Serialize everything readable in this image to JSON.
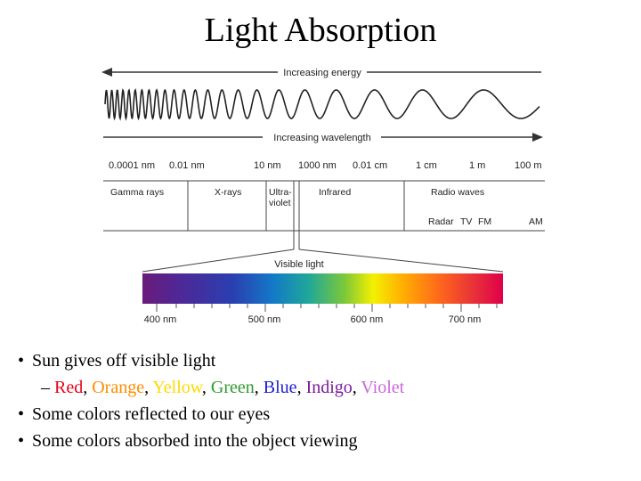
{
  "title": "Light Absorption",
  "diagram": {
    "energy_label": "Increasing energy",
    "wavelength_label": "Increasing wavelength",
    "scale_labels": [
      "0.0001 nm",
      "0.01 nm",
      "10 nm",
      "1000 nm",
      "0.01 cm",
      "1 cm",
      "1 m",
      "100 m"
    ],
    "regions": {
      "gamma": "Gamma rays",
      "xrays": "X-rays",
      "uv_line1": "Ultra-",
      "uv_line2": "violet",
      "infrared": "Infrared",
      "radio": "Radio waves",
      "radar": "Radar",
      "tv": "TV",
      "fm": "FM",
      "am": "AM"
    },
    "visible_label": "Visible light",
    "visible_ticks": [
      "400 nm",
      "500 nm",
      "600 nm",
      "700 nm"
    ]
  },
  "bullets": {
    "item1": "Sun gives off visible light",
    "colors": [
      {
        "text": "Red",
        "color": "#e8001c"
      },
      {
        "text": "Orange",
        "color": "#ff8c00"
      },
      {
        "text": "Yellow",
        "color": "#ffd800"
      },
      {
        "text": "Green",
        "color": "#2e9b2e"
      },
      {
        "text": "Blue",
        "color": "#1c1cd0"
      },
      {
        "text": "Indigo",
        "color": "#7a1a9a"
      },
      {
        "text": "Violet",
        "color": "#cc66dd"
      }
    ],
    "item2": "Some colors reflected to our eyes",
    "item3": "Some colors absorbed into the object viewing"
  }
}
